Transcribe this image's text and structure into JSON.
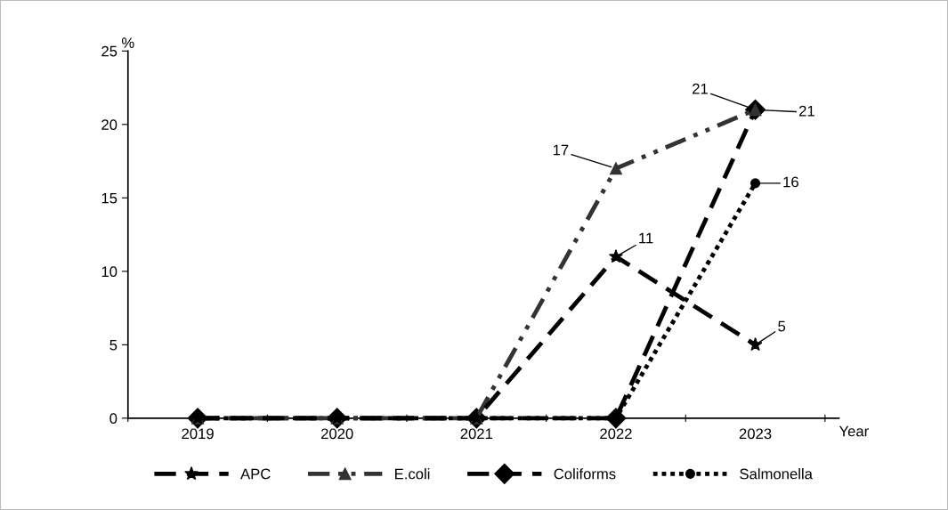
{
  "chart_data": {
    "type": "line",
    "xlabel": "Year",
    "ylabel": "%",
    "categories": [
      "2019",
      "2020",
      "2021",
      "2022",
      "2023"
    ],
    "series": [
      {
        "name": "APC",
        "color": "#000000",
        "values": [
          0,
          0,
          0,
          11,
          5
        ],
        "marker": "star",
        "line_style": "dashed",
        "value_labels": [
          null,
          null,
          null,
          "11",
          "5"
        ]
      },
      {
        "name": "E.coli",
        "color": "#333333",
        "values": [
          0,
          0,
          0,
          17,
          21
        ],
        "marker": "triangle",
        "line_style": "dashdot",
        "value_labels": [
          null,
          null,
          null,
          "17",
          "21"
        ]
      },
      {
        "name": "Coliforms",
        "color": "#000000",
        "values": [
          0,
          0,
          0,
          0,
          21
        ],
        "marker": "diamond",
        "line_style": "dashed",
        "value_labels": [
          null,
          null,
          null,
          null,
          "21"
        ]
      },
      {
        "name": "Salmonella",
        "color": "#000000",
        "values": [
          0,
          0,
          0,
          0,
          16
        ],
        "marker": "circle",
        "line_style": "dotted",
        "value_labels": [
          null,
          null,
          null,
          null,
          "16"
        ]
      }
    ],
    "ylim": [
      0,
      25
    ],
    "yticks": [
      0,
      5,
      10,
      15,
      20,
      25
    ],
    "grid": false,
    "legend": "bottom"
  }
}
